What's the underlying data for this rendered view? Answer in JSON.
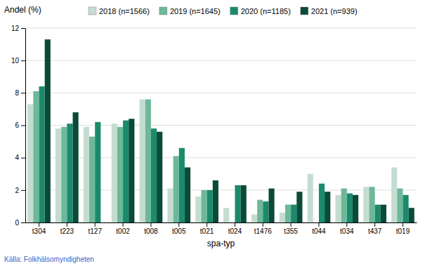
{
  "chart_data": {
    "type": "bar",
    "ylabel": "Andel (%)",
    "xlabel": "spa-typ",
    "annotations": [
      "Källa: Folkhälsomyndigheten"
    ],
    "categories": [
      "t304",
      "t223",
      "t127",
      "t002",
      "t008",
      "t005",
      "t021",
      "t024",
      "t1476",
      "t355",
      "t044",
      "t034",
      "t437",
      "t019"
    ],
    "series": [
      {
        "name": "2018 (n=1566)",
        "color": "#c5ddd1",
        "values": [
          7.3,
          5.8,
          5.9,
          6.1,
          7.6,
          2.1,
          1.6,
          0.9,
          0.5,
          0.6,
          3.0,
          1.7,
          2.2,
          3.4
        ]
      },
      {
        "name": "2019 (n=1645)",
        "color": "#6db89a",
        "values": [
          8.1,
          5.9,
          5.3,
          5.9,
          7.6,
          4.1,
          2.0,
          0.0,
          1.4,
          1.1,
          0.0,
          2.1,
          2.2,
          2.1
        ]
      },
      {
        "name": "2020 (n=1185)",
        "color": "#1b8a6b",
        "values": [
          8.4,
          6.1,
          6.2,
          6.3,
          5.8,
          4.6,
          2.0,
          2.3,
          1.3,
          1.1,
          2.4,
          1.8,
          1.1,
          1.7
        ]
      },
      {
        "name": "2021 (n=939)",
        "color": "#0a4a38",
        "values": [
          11.3,
          6.8,
          0.0,
          6.4,
          5.6,
          3.4,
          2.6,
          2.3,
          2.1,
          1.9,
          1.9,
          1.7,
          1.1,
          0.9
        ]
      }
    ],
    "ylim": [
      0,
      12
    ],
    "yticks": [
      0,
      2,
      4,
      6,
      8,
      10,
      12
    ],
    "grid": true,
    "legend": "top"
  }
}
